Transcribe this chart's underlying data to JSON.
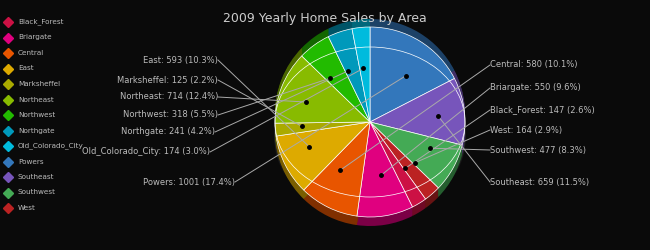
{
  "title": "2009 Yearly Home Sales by Area",
  "labels": [
    "Black_Forest",
    "Briargate",
    "Central",
    "East",
    "Marksheffel",
    "Northeast",
    "Northwest",
    "Northgate",
    "Old_Colorado_City",
    "Powers",
    "Southeast",
    "Southwest",
    "West"
  ],
  "values": [
    147,
    550,
    580,
    593,
    125,
    714,
    318,
    241,
    174,
    1001,
    659,
    477,
    164
  ],
  "colors": [
    "#cc1144",
    "#e0007f",
    "#e85500",
    "#ddaa00",
    "#aaaa00",
    "#88bb00",
    "#22bb00",
    "#0099bb",
    "#00bbdd",
    "#3377bb",
    "#7755bb",
    "#44aa55",
    "#bb2222"
  ],
  "legend_colors": [
    "#cc1144",
    "#e0007f",
    "#e85500",
    "#ddaa00",
    "#aaaa00",
    "#88bb00",
    "#22bb00",
    "#0099bb",
    "#00bbdd",
    "#3377bb",
    "#7755bb",
    "#44aa55",
    "#bb2222"
  ],
  "background_color": "#0a0a0a",
  "text_color": "#bbbbbb",
  "title_color": "#cccccc",
  "startangle": 90
}
